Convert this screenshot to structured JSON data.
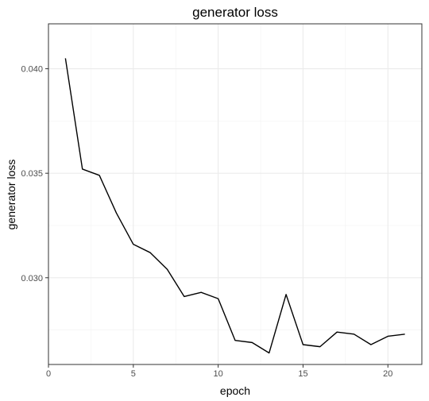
{
  "chart_data": {
    "type": "line",
    "title": "generator loss",
    "xlabel": "epoch",
    "ylabel": "generator loss",
    "xlim": [
      0,
      22
    ],
    "ylim": [
      0.02585,
      0.04215
    ],
    "x_ticks": [
      0,
      5,
      10,
      15,
      20
    ],
    "x_tick_labels": [
      "0",
      "5",
      "10",
      "15",
      "20"
    ],
    "y_ticks": [
      0.03,
      0.035,
      0.04
    ],
    "y_tick_labels": [
      "0.030",
      "0.035",
      "0.040"
    ],
    "grid": true,
    "series": [
      {
        "x": [
          1,
          2,
          3,
          4,
          5,
          6,
          7,
          8,
          9,
          10,
          11,
          12,
          13,
          14,
          15,
          16,
          17,
          18,
          19,
          20,
          21
        ],
        "values": [
          0.0405,
          0.0352,
          0.0349,
          0.0331,
          0.0316,
          0.0312,
          0.0304,
          0.0291,
          0.0293,
          0.029,
          0.027,
          0.0269,
          0.0264,
          0.0292,
          0.0268,
          0.0267,
          0.0274,
          0.0273,
          0.0268,
          0.0272,
          0.0273
        ],
        "color": "#000000"
      }
    ]
  }
}
